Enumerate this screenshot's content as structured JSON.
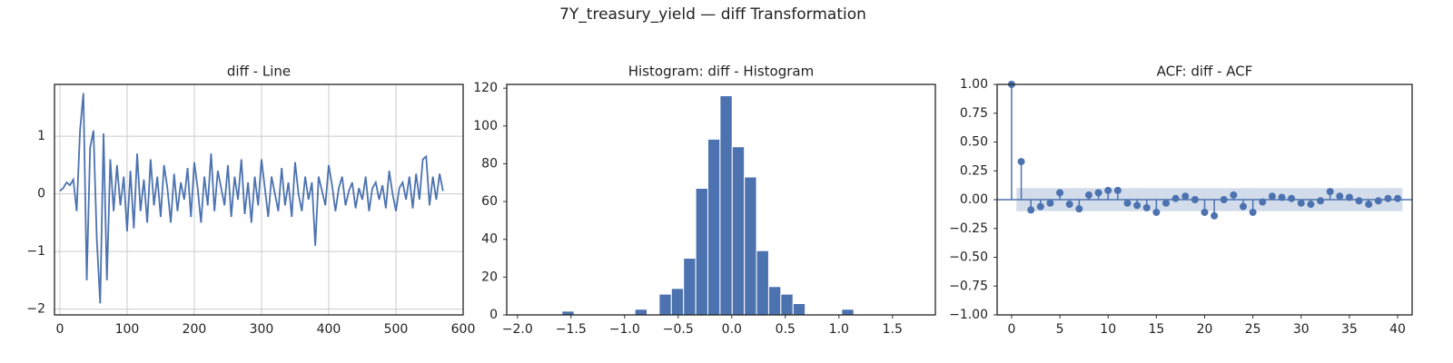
{
  "title": "7Y_treasury_yield — diff Transformation",
  "chart_data": [
    {
      "type": "line",
      "title": "diff - Line",
      "color": "#4c72b0",
      "grid": true,
      "x": [
        0,
        5,
        10,
        15,
        20,
        25,
        30,
        35,
        40,
        45,
        50,
        55,
        60,
        65,
        70,
        75,
        80,
        85,
        90,
        95,
        100,
        105,
        110,
        115,
        120,
        125,
        130,
        135,
        140,
        145,
        150,
        155,
        160,
        165,
        170,
        175,
        180,
        185,
        190,
        195,
        200,
        205,
        210,
        215,
        220,
        225,
        230,
        235,
        240,
        245,
        250,
        255,
        260,
        265,
        270,
        275,
        280,
        285,
        290,
        295,
        300,
        305,
        310,
        315,
        320,
        325,
        330,
        335,
        340,
        345,
        350,
        355,
        360,
        365,
        370,
        375,
        380,
        385,
        390,
        395,
        400,
        405,
        410,
        415,
        420,
        425,
        430,
        435,
        440,
        445,
        450,
        455,
        460,
        465,
        470,
        475,
        480,
        485,
        490,
        495,
        500,
        505,
        510,
        515,
        520,
        525,
        530,
        535,
        540,
        545,
        550,
        555,
        560,
        565,
        570
      ],
      "values": [
        0.05,
        0.1,
        0.2,
        0.15,
        0.25,
        -0.3,
        1.1,
        1.75,
        -1.5,
        0.8,
        1.1,
        -0.8,
        -1.9,
        1.05,
        -1.5,
        0.6,
        -0.3,
        0.5,
        -0.2,
        0.3,
        -0.65,
        0.4,
        -0.6,
        0.7,
        -0.3,
        0.25,
        -0.5,
        0.6,
        -0.2,
        0.3,
        -0.4,
        0.5,
        0.1,
        -0.5,
        0.35,
        -0.3,
        0.2,
        -0.1,
        0.45,
        -0.4,
        0.55,
        0.1,
        -0.5,
        0.3,
        -0.2,
        0.7,
        -0.3,
        0.4,
        0.1,
        -0.2,
        0.5,
        -0.4,
        0.3,
        -0.1,
        0.6,
        -0.35,
        0.2,
        -0.5,
        0.3,
        -0.2,
        0.6,
        0.1,
        -0.4,
        0.3,
        0.0,
        -0.3,
        0.45,
        -0.2,
        0.2,
        -0.4,
        0.55,
        0.0,
        -0.3,
        0.3,
        -0.1,
        0.2,
        -0.9,
        0.3,
        0.05,
        -0.2,
        0.5,
        0.15,
        -0.3,
        0.1,
        0.3,
        -0.2,
        0.05,
        0.2,
        -0.25,
        0.1,
        -0.1,
        0.3,
        -0.3,
        0.1,
        0.2,
        -0.1,
        0.15,
        -0.25,
        0.4,
        0.0,
        -0.3,
        0.1,
        0.2,
        -0.1,
        0.3,
        -0.25,
        0.35,
        -0.1,
        0.6,
        0.65,
        -0.2,
        0.3,
        -0.1,
        0.35,
        0.05
      ],
      "xlim": [
        -8,
        600
      ],
      "xticks": [
        0,
        100,
        200,
        300,
        400,
        500,
        600
      ],
      "ylim": [
        -2.1,
        1.9
      ],
      "yticks": [
        {
          "value": -2,
          "label": "−2"
        },
        {
          "value": -1,
          "label": "−1"
        },
        0,
        1
      ]
    },
    {
      "type": "histogram",
      "title": "Histogram: diff - Histogram",
      "color": "#4c72b0",
      "grid": false,
      "bins": [
        -1.585,
        -1.4715,
        -1.358,
        -1.2445,
        -1.131,
        -1.0175,
        -0.904,
        -0.7905,
        -0.677,
        -0.5635,
        -0.45,
        -0.3365,
        -0.223,
        -0.1095,
        0.004,
        0.1175,
        0.231,
        0.3445,
        0.458,
        0.5715,
        0.685,
        0.7985,
        0.912,
        1.0255,
        1.139
      ],
      "counts": [
        2,
        0,
        0,
        0,
        0,
        0,
        3,
        0,
        11,
        14,
        30,
        67,
        93,
        116,
        89,
        73,
        34,
        15,
        11,
        6,
        0,
        0,
        0,
        3
      ],
      "xlim": [
        -2.1,
        1.9
      ],
      "xticks": [
        {
          "value": -2,
          "label": "−2.0"
        },
        {
          "value": -1.5,
          "label": "−1.5"
        },
        {
          "value": -1,
          "label": "−1.0"
        },
        {
          "value": -0.5,
          "label": "−0.5"
        },
        {
          "value": 0,
          "label": "0.0"
        },
        0.5,
        {
          "value": 1,
          "label": "1.0"
        },
        1.5
      ],
      "ylim": [
        0,
        122
      ],
      "yticks": [
        0,
        20,
        40,
        60,
        80,
        100,
        120
      ]
    },
    {
      "type": "stem",
      "title": "ACF: diff - ACF",
      "color": "#4c72b0",
      "grid": false,
      "lags": [
        0,
        1,
        2,
        3,
        4,
        5,
        6,
        7,
        8,
        9,
        10,
        11,
        12,
        13,
        14,
        15,
        16,
        17,
        18,
        19,
        20,
        21,
        22,
        23,
        24,
        25,
        26,
        27,
        28,
        29,
        30,
        31,
        32,
        33,
        34,
        35,
        36,
        37,
        38,
        39,
        40
      ],
      "values": [
        1.0,
        0.33,
        -0.09,
        -0.06,
        -0.03,
        0.06,
        -0.04,
        -0.08,
        0.04,
        0.06,
        0.08,
        0.08,
        -0.03,
        -0.05,
        -0.07,
        -0.11,
        -0.03,
        0.01,
        0.03,
        0.0,
        -0.11,
        -0.14,
        0.0,
        0.04,
        -0.06,
        -0.11,
        -0.02,
        0.03,
        0.02,
        0.01,
        -0.03,
        -0.04,
        -0.01,
        0.07,
        0.03,
        0.02,
        -0.01,
        -0.04,
        -0.01,
        0.01,
        0.01
      ],
      "confidence": [
        -0.1,
        0.1
      ],
      "xlim": [
        -1.5,
        41.5
      ],
      "xticks": [
        0,
        5,
        10,
        15,
        20,
        25,
        30,
        35,
        40
      ],
      "ylim": [
        -1,
        1
      ],
      "yticks": [
        {
          "value": -1,
          "label": "−1.00"
        },
        {
          "value": -0.75,
          "label": "−0.75"
        },
        {
          "value": -0.5,
          "label": "−0.50"
        },
        {
          "value": -0.25,
          "label": "−0.25"
        },
        {
          "value": 0,
          "label": "0.00"
        },
        {
          "value": 0.25,
          "label": "0.25"
        },
        {
          "value": 0.5,
          "label": "0.50"
        },
        {
          "value": 0.75,
          "label": "0.75"
        },
        {
          "value": 1,
          "label": "1.00"
        }
      ]
    }
  ]
}
